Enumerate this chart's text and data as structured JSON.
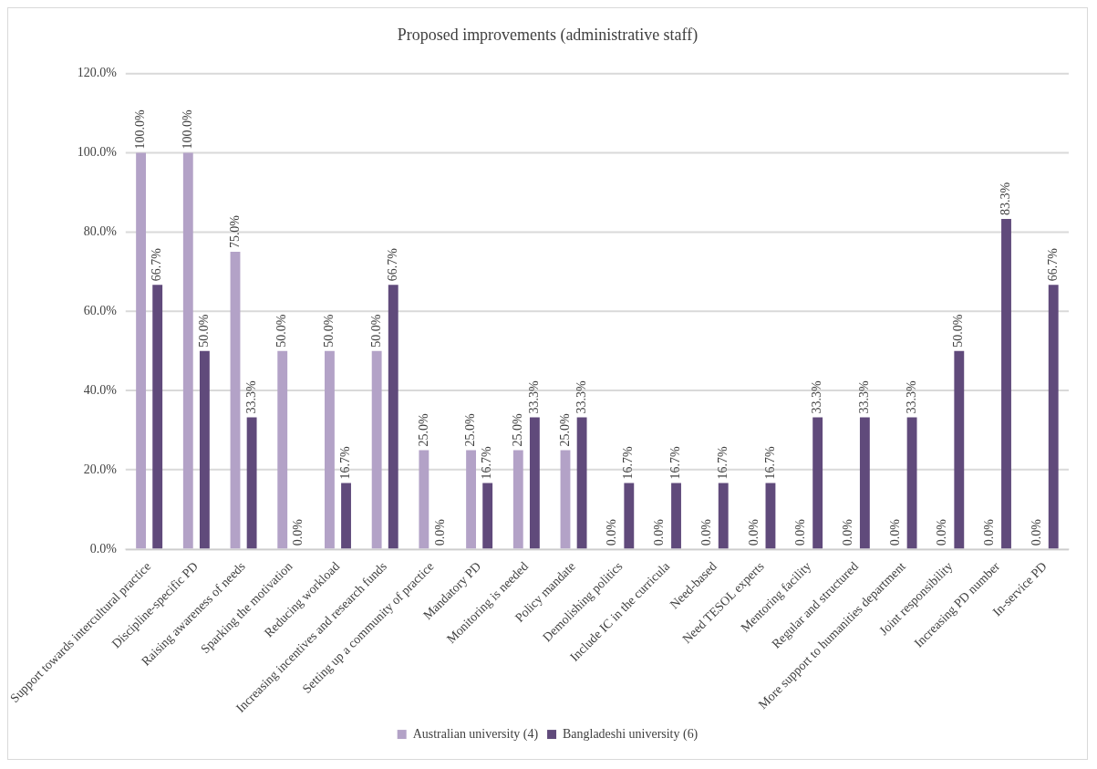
{
  "chart_data": {
    "type": "bar",
    "title": "Proposed improvements (administrative staff)",
    "categories": [
      "Support towards intercultural practice",
      "Discipline-specific PD",
      "Raising awareness of needs",
      "Sparking the motivation",
      "Reducing workload",
      "Increasing incentives and research funds",
      "Setting up a community of practice",
      "Mandatory PD",
      "Monitoring is needed",
      "Policy mandate",
      "Demolishing politics",
      "Include IC in the curricula",
      "Need-based",
      "Need TESOL experts",
      "Mentoring facility",
      "Regular and structured",
      "More support to humanities department",
      "Joint responsibility",
      "Increasing PD number",
      "In-service PD"
    ],
    "series": [
      {
        "name": "Australian university (4)",
        "color": "#b3a2c7",
        "values": [
          100,
          100,
          75,
          50,
          50,
          50,
          25,
          25,
          25,
          25,
          0,
          0,
          0,
          0,
          0,
          0,
          0,
          0,
          0,
          0
        ],
        "value_labels": [
          "100.0%",
          "100.0%",
          "75.0%",
          "50.0%",
          "50.0%",
          "50.0%",
          "25.0%",
          "25.0%",
          "25.0%",
          "25.0%",
          "0.0%",
          "0.0%",
          "0.0%",
          "0.0%",
          "0.0%",
          "0.0%",
          "0.0%",
          "0.0%",
          "0.0%",
          "0.0%"
        ]
      },
      {
        "name": "Bangladeshi university (6)",
        "color": "#604a7b",
        "values": [
          66.7,
          50,
          33.3,
          0,
          16.7,
          66.7,
          0,
          16.7,
          33.3,
          33.3,
          16.7,
          16.7,
          16.7,
          16.7,
          33.3,
          33.3,
          33.3,
          50,
          83.3,
          66.7
        ],
        "value_labels": [
          "66.7%",
          "50.0%",
          "33.3%",
          "0.0%",
          "16.7%",
          "66.7%",
          "0.0%",
          "16.7%",
          "33.3%",
          "33.3%",
          "16.7%",
          "16.7%",
          "16.7%",
          "16.7%",
          "33.3%",
          "33.3%",
          "33.3%",
          "50.0%",
          "83.3%",
          "66.7%"
        ]
      }
    ],
    "ylim": [
      0,
      120
    ],
    "yticks": [
      {
        "value": 0,
        "label": "0.0%"
      },
      {
        "value": 20,
        "label": "20.0%"
      },
      {
        "value": 40,
        "label": "40.0%"
      },
      {
        "value": 60,
        "label": "60.0%"
      },
      {
        "value": 80,
        "label": "80.0%"
      },
      {
        "value": 100,
        "label": "100.0%"
      },
      {
        "value": 120,
        "label": "120.0%"
      }
    ],
    "grid": "y",
    "legend": "bottom"
  }
}
